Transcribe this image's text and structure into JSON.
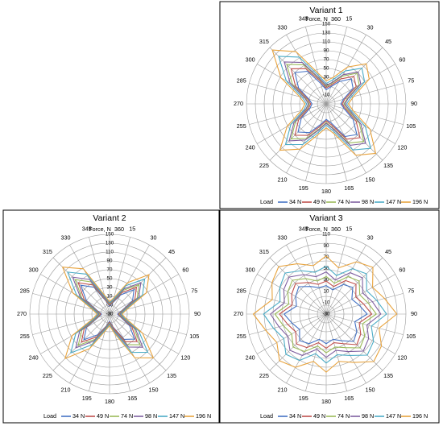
{
  "legend_title": "Load",
  "series_colors": {
    "34 N": "#4472c4",
    "49 N": "#c0504d",
    "74 N": "#9bbb59",
    "98 N": "#7f5fa0",
    "147 N": "#4bacc6",
    "196 N": "#e8a33d"
  },
  "chart_data": [
    {
      "type": "radar",
      "title": "Variant 1",
      "axis_label": "Force, N",
      "angles": [
        "360",
        "15",
        "30",
        "45",
        "60",
        "75",
        "90",
        "105",
        "120",
        "135",
        "150",
        "165",
        "180",
        "195",
        "210",
        "225",
        "240",
        "255",
        "270",
        "285",
        "300",
        "315",
        "330",
        "345"
      ],
      "radial_ticks": [
        "-10",
        "10",
        "30",
        "50",
        "70",
        "90",
        "110",
        "130",
        "150"
      ],
      "rlim": [
        -30,
        150
      ],
      "grid": true,
      "legend_position": "bottom",
      "series": [
        {
          "name": "34 N",
          "values": [
            2,
            10,
            28,
            50,
            40,
            10,
            3,
            12,
            40,
            68,
            55,
            15,
            5,
            18,
            45,
            60,
            35,
            8,
            2,
            10,
            42,
            70,
            55,
            18
          ]
        },
        {
          "name": "49 N",
          "values": [
            6,
            14,
            35,
            58,
            48,
            14,
            6,
            16,
            48,
            78,
            62,
            20,
            8,
            22,
            52,
            70,
            42,
            12,
            5,
            14,
            50,
            82,
            62,
            24
          ]
        },
        {
          "name": "74 N",
          "values": [
            10,
            18,
            42,
            68,
            56,
            20,
            10,
            20,
            56,
            90,
            72,
            26,
            12,
            28,
            60,
            82,
            50,
            16,
            8,
            18,
            58,
            96,
            72,
            28
          ]
        },
        {
          "name": "98 N",
          "values": [
            12,
            20,
            46,
            72,
            60,
            22,
            12,
            24,
            60,
            96,
            78,
            28,
            14,
            30,
            64,
            88,
            54,
            18,
            10,
            20,
            64,
            104,
            78,
            30
          ]
        },
        {
          "name": "147 N",
          "values": [
            16,
            26,
            56,
            84,
            70,
            28,
            16,
            28,
            72,
            112,
            90,
            34,
            18,
            36,
            76,
            100,
            62,
            22,
            14,
            26,
            74,
            122,
            92,
            36
          ]
        },
        {
          "name": "196 N",
          "values": [
            22,
            32,
            66,
            98,
            82,
            34,
            20,
            34,
            84,
            128,
            104,
            40,
            24,
            42,
            88,
            118,
            72,
            28,
            18,
            32,
            88,
            142,
            106,
            42
          ]
        }
      ]
    },
    {
      "type": "radar",
      "title": "Variant 2",
      "axis_label": "Force, N",
      "angles": [
        "360",
        "15",
        "30",
        "45",
        "60",
        "75",
        "90",
        "105",
        "120",
        "135",
        "150",
        "165",
        "180",
        "195",
        "210",
        "225",
        "240",
        "255",
        "270",
        "285",
        "300",
        "315",
        "330",
        "345"
      ],
      "radial_ticks": [
        "-30",
        "-10",
        "10",
        "30",
        "50",
        "70",
        "90",
        "110",
        "130",
        "150"
      ],
      "rlim": [
        -30,
        150
      ],
      "grid": true,
      "legend_position": "bottom",
      "series": [
        {
          "name": "34 N",
          "values": [
            -12,
            -4,
            20,
            48,
            30,
            -2,
            -12,
            -4,
            22,
            50,
            36,
            0,
            -14,
            -2,
            24,
            52,
            30,
            -4,
            -12,
            -2,
            30,
            62,
            40,
            0
          ]
        },
        {
          "name": "49 N",
          "values": [
            -10,
            -2,
            26,
            56,
            36,
            0,
            -10,
            -2,
            28,
            58,
            42,
            2,
            -12,
            0,
            30,
            60,
            36,
            -2,
            -10,
            0,
            36,
            70,
            46,
            2
          ]
        },
        {
          "name": "74 N",
          "values": [
            -8,
            0,
            32,
            64,
            42,
            2,
            -8,
            0,
            34,
            68,
            50,
            6,
            -10,
            2,
            36,
            70,
            42,
            0,
            -8,
            2,
            42,
            80,
            54,
            4
          ]
        },
        {
          "name": "98 N",
          "values": [
            -6,
            2,
            36,
            70,
            46,
            4,
            -6,
            2,
            38,
            76,
            56,
            8,
            -8,
            4,
            40,
            78,
            48,
            2,
            -6,
            4,
            46,
            88,
            60,
            6
          ]
        },
        {
          "name": "147 N",
          "values": [
            -4,
            4,
            44,
            82,
            56,
            6,
            -4,
            4,
            46,
            92,
            70,
            12,
            -6,
            6,
            50,
            94,
            58,
            4,
            -4,
            6,
            56,
            104,
            74,
            10
          ]
        },
        {
          "name": "196 N",
          "values": [
            -2,
            8,
            52,
            96,
            66,
            10,
            -2,
            8,
            56,
            110,
            84,
            16,
            -4,
            10,
            60,
            112,
            68,
            8,
            -2,
            10,
            66,
            120,
            88,
            14
          ]
        }
      ]
    },
    {
      "type": "radar",
      "title": "Variant 3",
      "axis_label": "Force, N",
      "angles": [
        "360",
        "15",
        "30",
        "45",
        "60",
        "75",
        "90",
        "105",
        "120",
        "135",
        "150",
        "165",
        "180",
        "195",
        "210",
        "225",
        "240",
        "255",
        "270",
        "285",
        "300",
        "315",
        "330",
        "345"
      ],
      "radial_ticks": [
        "-30",
        "-10",
        "10",
        "30",
        "50",
        "70",
        "90",
        "110"
      ],
      "rlim": [
        -30,
        110
      ],
      "grid": true,
      "legend_position": "bottom",
      "series": [
        {
          "name": "34 N",
          "values": [
            20,
            14,
            30,
            36,
            22,
            30,
            42,
            22,
            32,
            38,
            24,
            16,
            22,
            16,
            30,
            36,
            24,
            32,
            44,
            24,
            32,
            38,
            26,
            18
          ]
        },
        {
          "name": "49 N",
          "values": [
            28,
            20,
            38,
            44,
            30,
            38,
            50,
            30,
            40,
            46,
            30,
            22,
            30,
            22,
            38,
            44,
            32,
            40,
            52,
            32,
            40,
            46,
            34,
            24
          ]
        },
        {
          "name": "74 N",
          "values": [
            36,
            26,
            46,
            52,
            38,
            46,
            58,
            36,
            48,
            54,
            38,
            30,
            38,
            28,
            46,
            52,
            40,
            48,
            60,
            38,
            48,
            54,
            42,
            30
          ]
        },
        {
          "name": "98 N",
          "values": [
            44,
            32,
            54,
            60,
            44,
            54,
            66,
            44,
            56,
            62,
            46,
            36,
            46,
            34,
            54,
            60,
            48,
            56,
            68,
            46,
            56,
            62,
            50,
            38
          ]
        },
        {
          "name": "147 N",
          "values": [
            54,
            40,
            62,
            70,
            52,
            62,
            76,
            52,
            66,
            72,
            54,
            44,
            56,
            42,
            64,
            70,
            56,
            66,
            80,
            54,
            64,
            72,
            58,
            46
          ]
        },
        {
          "name": "196 N",
          "values": [
            72,
            54,
            76,
            86,
            64,
            76,
            94,
            66,
            82,
            88,
            68,
            56,
            72,
            56,
            78,
            86,
            70,
            80,
            98,
            68,
            80,
            88,
            72,
            58
          ]
        }
      ]
    }
  ]
}
